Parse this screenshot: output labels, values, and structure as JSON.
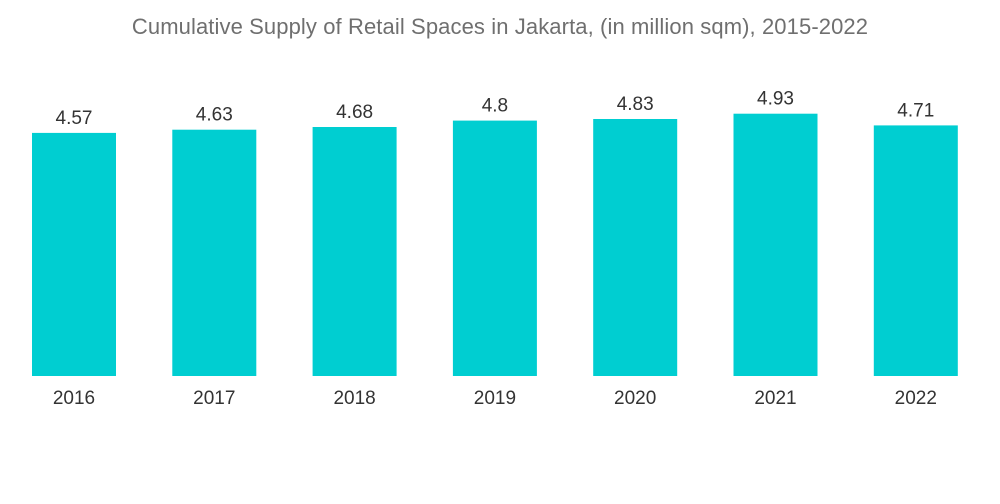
{
  "chart_data": {
    "type": "bar",
    "title": "Cumulative Supply of Retail Spaces in Jakarta, (in million sqm), 2015-2022",
    "categories": [
      "2016",
      "2017",
      "2018",
      "2019",
      "2020",
      "2021",
      "2022"
    ],
    "values": [
      4.57,
      4.63,
      4.68,
      4.8,
      4.83,
      4.93,
      4.71
    ],
    "data_labels": [
      "4.57",
      "4.63",
      "4.68",
      "4.8",
      "4.83",
      "4.93",
      "4.71"
    ],
    "xlabel": "",
    "ylabel": "",
    "ylim": [
      0,
      5
    ],
    "grid": false,
    "legend": "none",
    "bar_color": "#00ced1"
  }
}
